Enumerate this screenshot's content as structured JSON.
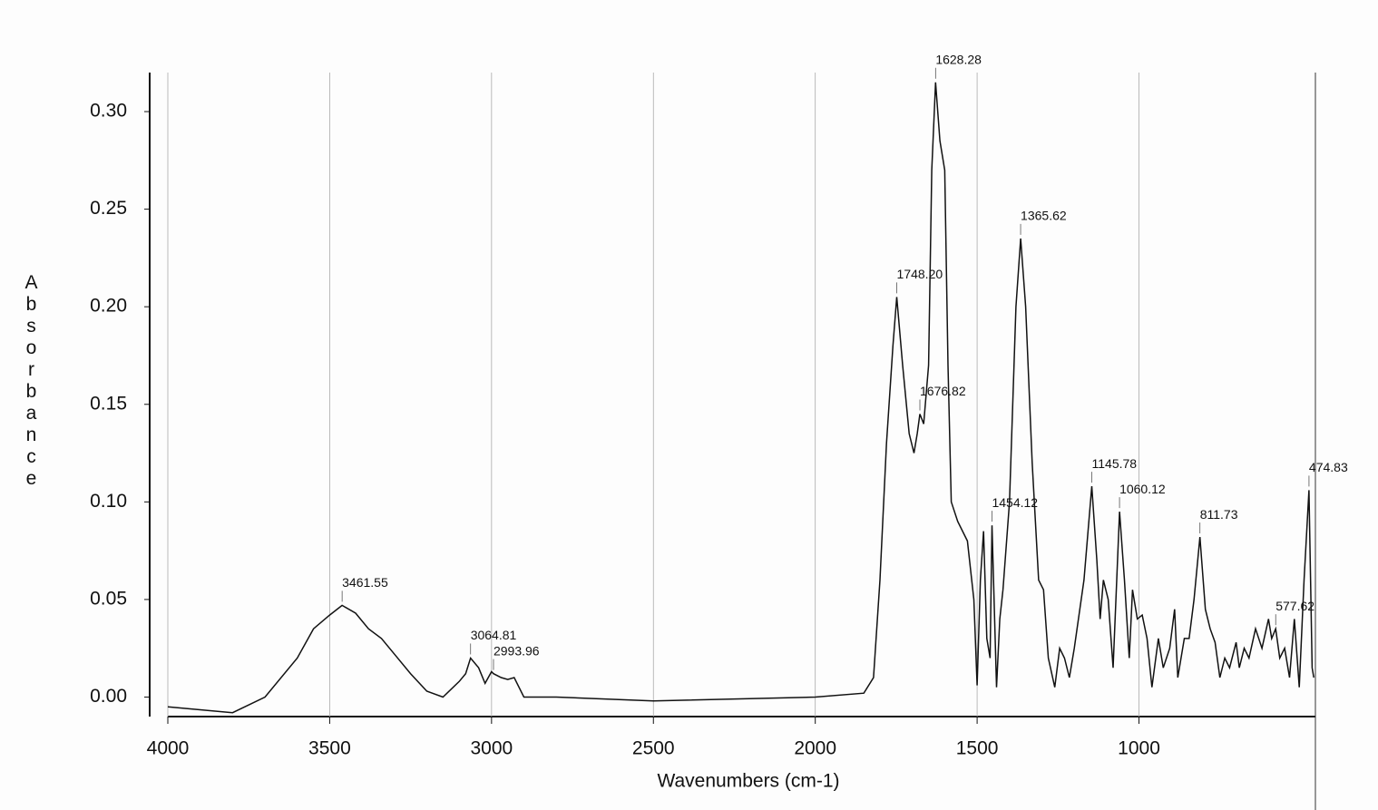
{
  "chart_data": {
    "type": "line",
    "xlabel": "Wavenumbers (cm-1)",
    "ylabel": "Absorbance",
    "color": "#111111",
    "grid": true,
    "xlim": [
      4000,
      455
    ],
    "ylim": [
      -0.01,
      0.32
    ],
    "xticks": [
      4000,
      3500,
      3000,
      2500,
      2000,
      1500,
      1000
    ],
    "yticks": [
      {
        "value": 0,
        "label": "0.00"
      },
      {
        "value": 0.05,
        "label": "0.05"
      },
      {
        "value": 0.1,
        "label": "0.10"
      },
      {
        "value": 0.15,
        "label": "0.15"
      },
      {
        "value": 0.2,
        "label": "0.20"
      },
      {
        "value": 0.25,
        "label": "0.25"
      },
      {
        "value": 0.3,
        "label": "0.30"
      }
    ],
    "x": [
      4000,
      3800,
      3700,
      3600,
      3550,
      3500,
      3461.55,
      3420,
      3380,
      3340,
      3300,
      3250,
      3200,
      3150,
      3100,
      3080,
      3064.81,
      3040,
      3020,
      3000,
      2993.96,
      2970,
      2950,
      2930,
      2900,
      2800,
      2500,
      2000,
      1850,
      1820,
      1800,
      1780,
      1760,
      1748.2,
      1730,
      1710,
      1695,
      1685,
      1676.82,
      1665,
      1650,
      1640,
      1628.28,
      1615,
      1600,
      1590,
      1580,
      1560,
      1530,
      1510,
      1500,
      1490,
      1480,
      1470,
      1460,
      1454.12,
      1440,
      1430,
      1420,
      1400,
      1380,
      1365.62,
      1350,
      1330,
      1310,
      1295,
      1280,
      1260,
      1245,
      1230,
      1215,
      1200,
      1170,
      1145.78,
      1130,
      1120,
      1110,
      1095,
      1080,
      1060.12,
      1045,
      1030,
      1020,
      1005,
      990,
      975,
      960,
      940,
      925,
      905,
      890,
      880,
      860,
      845,
      830,
      811.73,
      795,
      780,
      765,
      750,
      735,
      720,
      700,
      690,
      675,
      660,
      640,
      620,
      600,
      590,
      577.62,
      565,
      550,
      535,
      520,
      505,
      490,
      474.83,
      465,
      460
    ],
    "y": [
      -0.005,
      -0.008,
      0.0,
      0.02,
      0.035,
      0.042,
      0.047,
      0.043,
      0.035,
      0.03,
      0.022,
      0.012,
      0.003,
      0.0,
      0.008,
      0.012,
      0.02,
      0.015,
      0.007,
      0.013,
      0.012,
      0.01,
      0.009,
      0.01,
      0.0,
      0.0,
      -0.002,
      0.0,
      0.002,
      0.01,
      0.06,
      0.13,
      0.18,
      0.205,
      0.17,
      0.135,
      0.125,
      0.135,
      0.145,
      0.14,
      0.17,
      0.27,
      0.315,
      0.285,
      0.27,
      0.17,
      0.1,
      0.09,
      0.08,
      0.05,
      0.006,
      0.06,
      0.085,
      0.03,
      0.02,
      0.088,
      0.005,
      0.04,
      0.055,
      0.1,
      0.2,
      0.235,
      0.2,
      0.12,
      0.06,
      0.055,
      0.02,
      0.005,
      0.025,
      0.02,
      0.01,
      0.025,
      0.06,
      0.108,
      0.07,
      0.04,
      0.06,
      0.05,
      0.015,
      0.095,
      0.06,
      0.02,
      0.055,
      0.04,
      0.042,
      0.03,
      0.005,
      0.03,
      0.015,
      0.025,
      0.045,
      0.01,
      0.03,
      0.03,
      0.05,
      0.082,
      0.045,
      0.035,
      0.028,
      0.01,
      0.02,
      0.015,
      0.028,
      0.015,
      0.025,
      0.02,
      0.035,
      0.025,
      0.04,
      0.03,
      0.035,
      0.02,
      0.025,
      0.01,
      0.04,
      0.005,
      0.06,
      0.106,
      0.015,
      0.01
    ],
    "annotations": [
      {
        "x": 3461.55,
        "y": 0.047,
        "text": "3461.55"
      },
      {
        "x": 3064.81,
        "y": 0.02,
        "text": "3064.81"
      },
      {
        "x": 2993.96,
        "y": 0.012,
        "text": "2993.96"
      },
      {
        "x": 1748.2,
        "y": 0.205,
        "text": "1748.20"
      },
      {
        "x": 1676.82,
        "y": 0.145,
        "text": "1676.82"
      },
      {
        "x": 1628.28,
        "y": 0.315,
        "text": "1628.28"
      },
      {
        "x": 1454.12,
        "y": 0.088,
        "text": "1454.12"
      },
      {
        "x": 1365.62,
        "y": 0.235,
        "text": "1365.62"
      },
      {
        "x": 1145.78,
        "y": 0.108,
        "text": "1145.78"
      },
      {
        "x": 1060.12,
        "y": 0.095,
        "text": "1060.12"
      },
      {
        "x": 811.73,
        "y": 0.082,
        "text": "811.73"
      },
      {
        "x": 577.62,
        "y": 0.035,
        "text": "577.62"
      },
      {
        "x": 474.83,
        "y": 0.106,
        "text": "474.83"
      }
    ]
  }
}
